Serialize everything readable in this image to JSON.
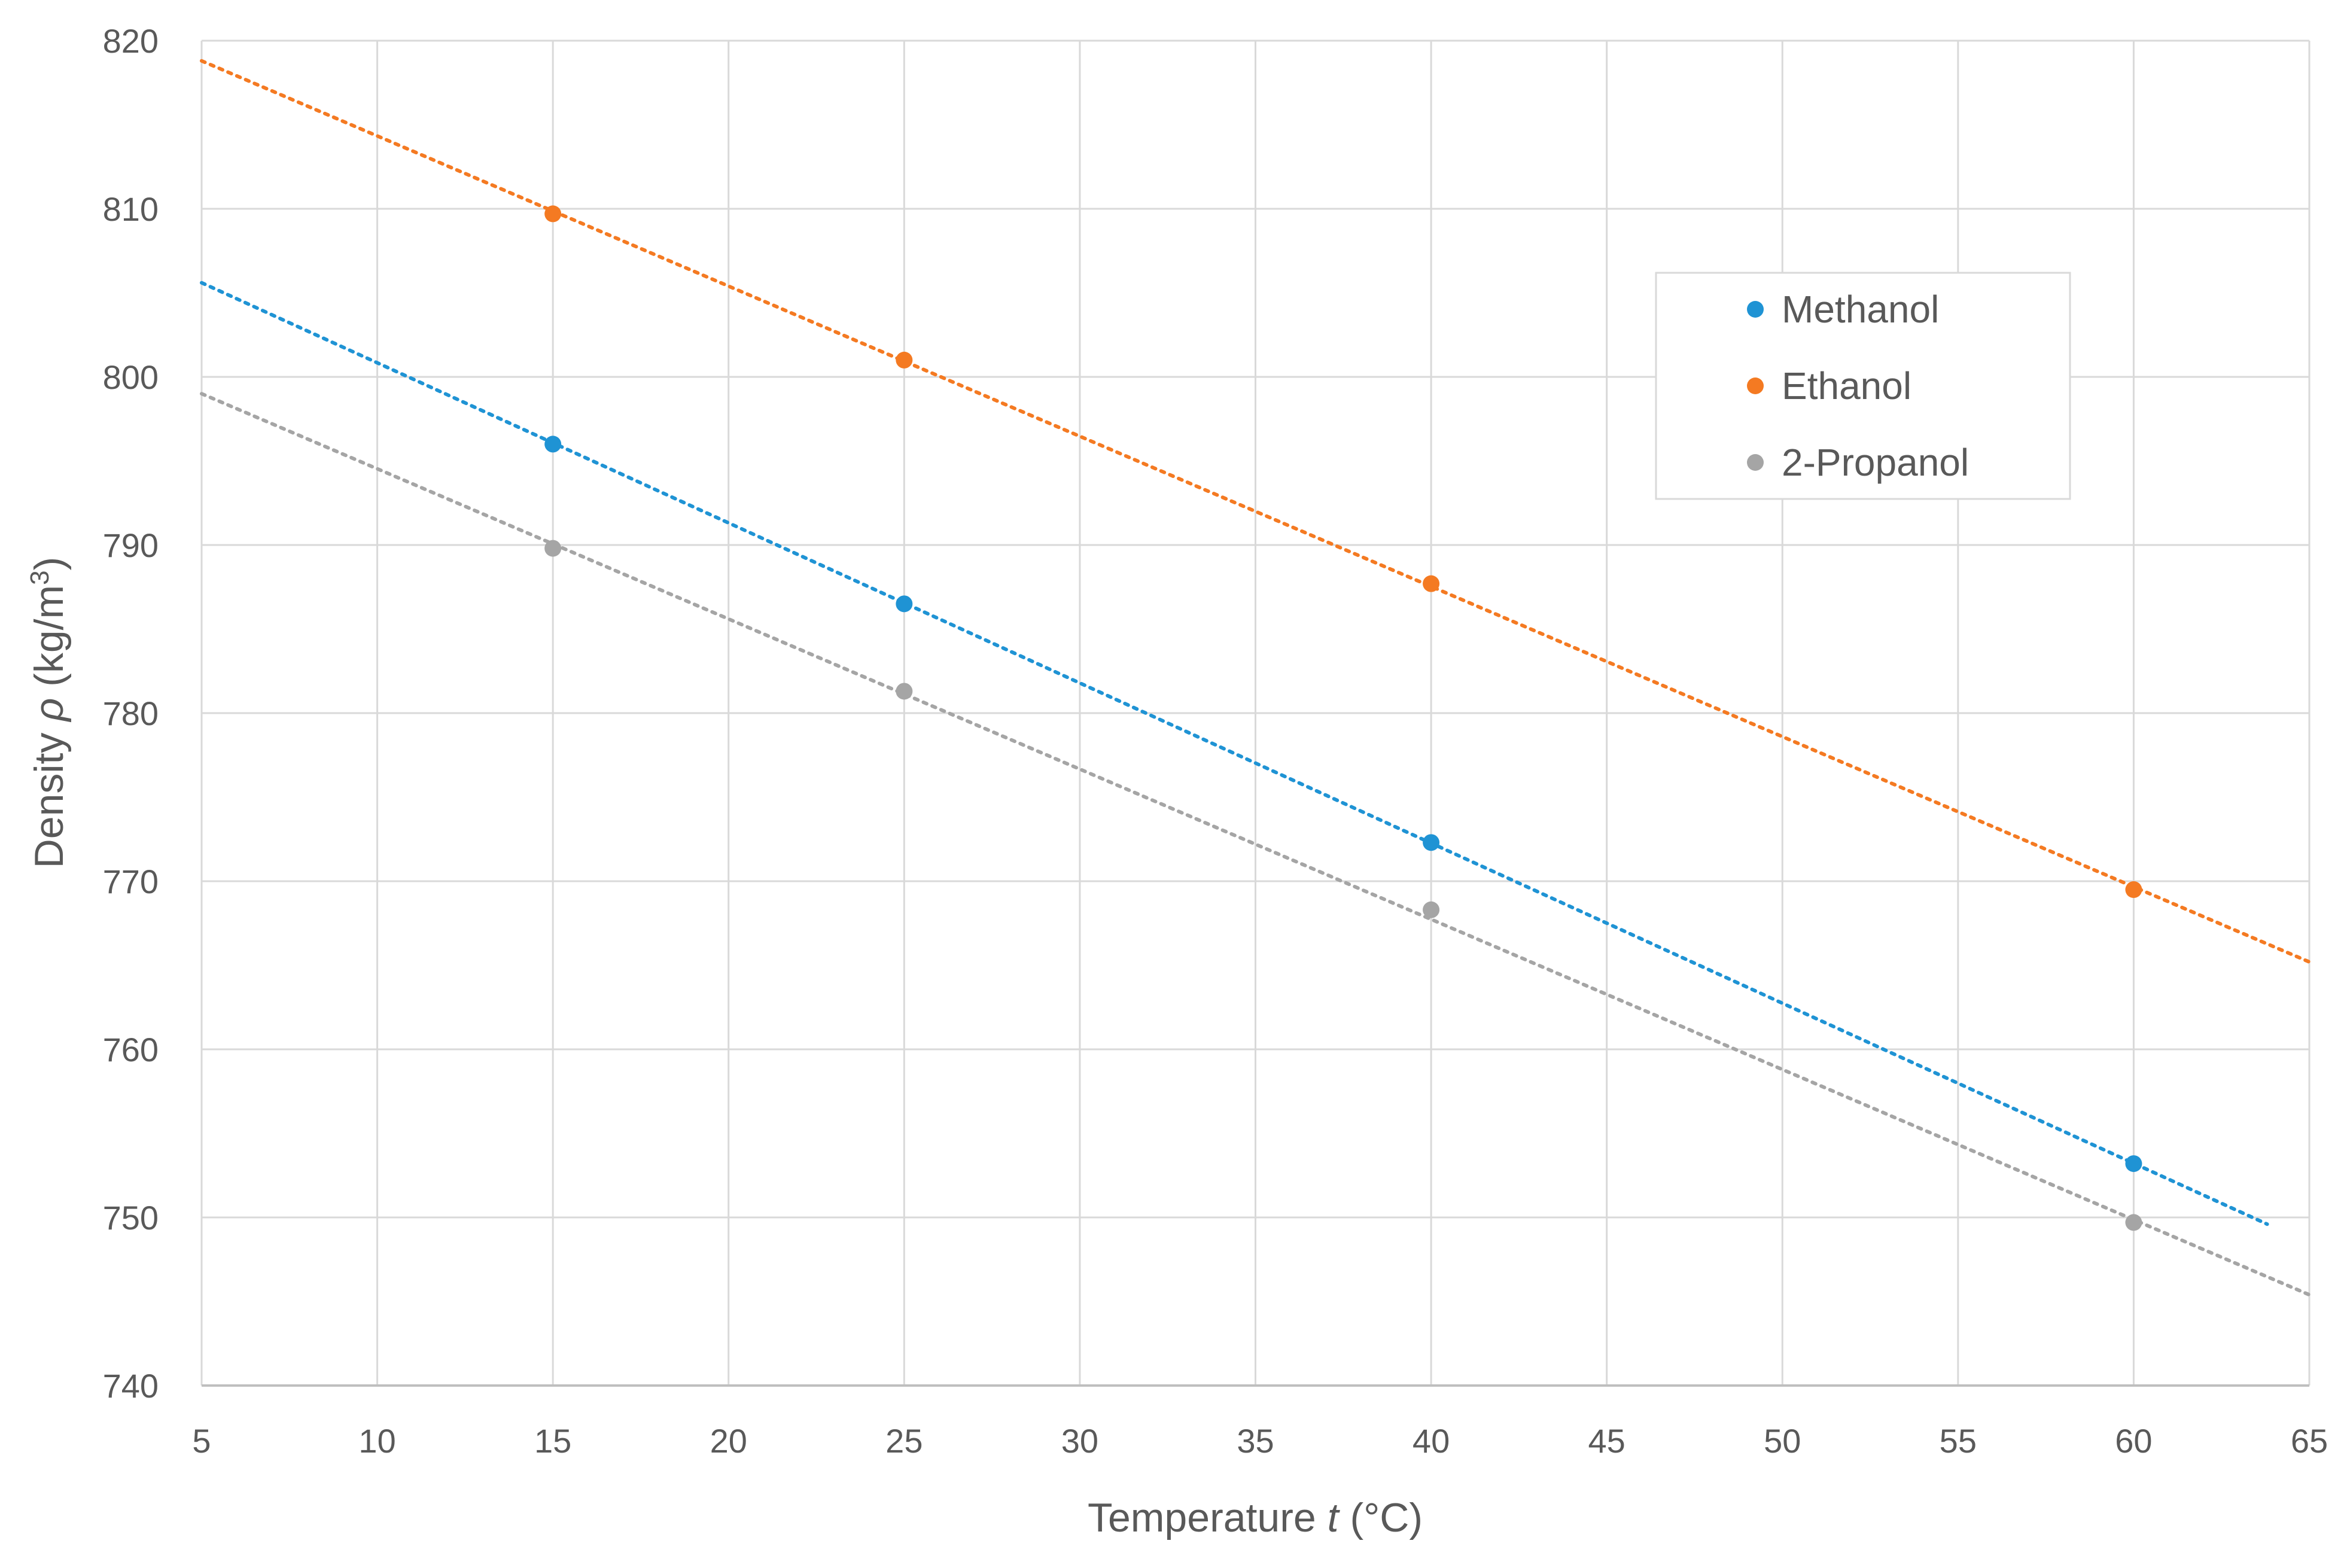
{
  "chart_data": {
    "type": "scatter",
    "title": "",
    "xlabel": "Temperature",
    "xlabel_var": "t",
    "xlabel_unit": "(°C)",
    "ylabel": "Density",
    "ylabel_var": "ρ",
    "ylabel_unit": "(kg/m",
    "ylabel_unit_sup": "3",
    "ylabel_unit_close": ")",
    "xlim": [
      5,
      65
    ],
    "ylim": [
      740,
      820
    ],
    "xticks": [
      5,
      10,
      15,
      20,
      25,
      30,
      35,
      40,
      45,
      50,
      55,
      60,
      65
    ],
    "yticks": [
      740,
      750,
      760,
      770,
      780,
      790,
      800,
      810,
      820
    ],
    "grid": true,
    "legend_position": "upper-right",
    "series": [
      {
        "name": "Methanol",
        "color": "#1f93d4",
        "points": [
          [
            15,
            796.0
          ],
          [
            25,
            786.5
          ],
          [
            40,
            772.3
          ],
          [
            60,
            753.2
          ]
        ],
        "trendline": {
          "x_start": 5,
          "y_start": 805.6,
          "x_end": 63.8,
          "y_end": 749.6
        }
      },
      {
        "name": "Ethanol",
        "color": "#f47a22",
        "points": [
          [
            15,
            809.7
          ],
          [
            25,
            801.0
          ],
          [
            40,
            787.7
          ],
          [
            60,
            769.5
          ]
        ],
        "trendline": {
          "x_start": 5,
          "y_start": 818.8,
          "x_end": 65,
          "y_end": 765.2
        }
      },
      {
        "name": "2-Propanol",
        "color": "#a5a5a5",
        "points": [
          [
            15,
            789.8
          ],
          [
            25,
            781.3
          ],
          [
            40,
            768.3
          ],
          [
            60,
            749.7
          ]
        ],
        "trendline": {
          "x_start": 5,
          "y_start": 799.0,
          "x_end": 65,
          "y_end": 745.4
        }
      }
    ]
  }
}
